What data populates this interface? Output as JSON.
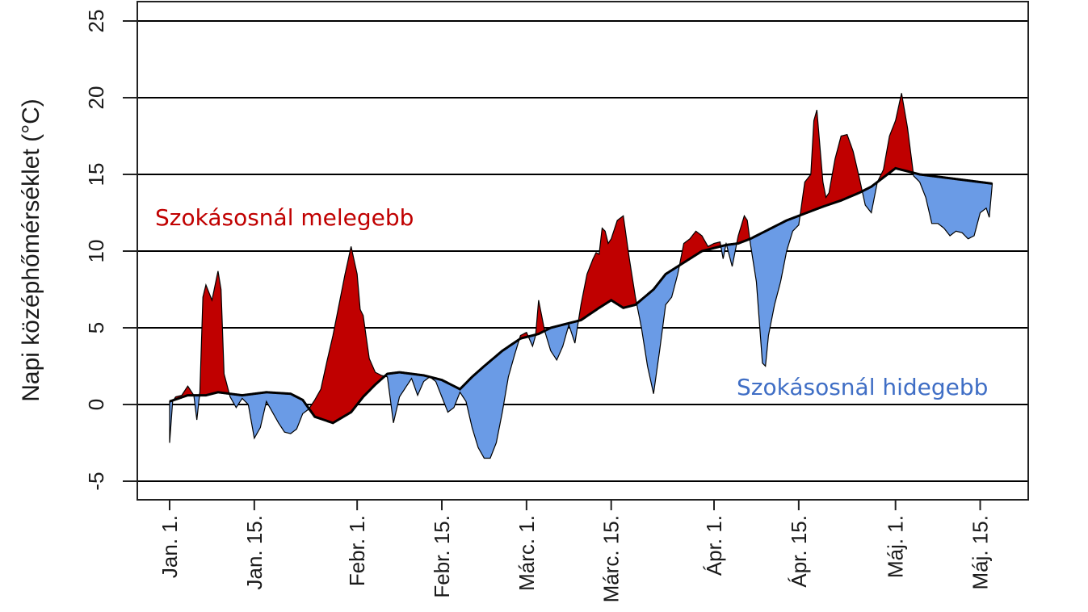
{
  "chart_data": {
    "type": "area",
    "ylabel": "Napi középhőmérséklet (°C)",
    "ylim": [
      -6,
      26
    ],
    "yticks": [
      -5,
      0,
      5,
      10,
      15,
      20,
      25
    ],
    "ytick_labels": [
      "-5",
      "0",
      "5",
      "10",
      "15",
      "20",
      "25"
    ],
    "xlim": [
      0,
      137
    ],
    "grid": "horizontal",
    "xticks": [
      {
        "day": 0,
        "label": "Jan. 1."
      },
      {
        "day": 14,
        "label": "Jan. 15."
      },
      {
        "day": 31,
        "label": "Febr. 1."
      },
      {
        "day": 45,
        "label": "Febr. 15."
      },
      {
        "day": 59,
        "label": "Márc. 1."
      },
      {
        "day": 73,
        "label": "Márc. 15."
      },
      {
        "day": 90,
        "label": "Ápr. 1."
      },
      {
        "day": 104,
        "label": "Ápr. 15."
      },
      {
        "day": 120,
        "label": "Máj. 1."
      },
      {
        "day": 134,
        "label": "Máj. 15."
      }
    ],
    "annotations": [
      {
        "text": "Szokásosnál melegebb",
        "color": "#c00000",
        "position": "upper-left"
      },
      {
        "text": "Szokásosnál hidegebb",
        "color": "#3f6ec5",
        "position": "lower-right"
      }
    ],
    "colors": {
      "warmer": "#c00000",
      "colder": "#6a9be6",
      "normal_line": "#000000",
      "grid": "#000000"
    },
    "series": [
      {
        "role": "normal",
        "points": [
          [
            0,
            0.2
          ],
          [
            3,
            0.6
          ],
          [
            6,
            0.6
          ],
          [
            8,
            0.8
          ],
          [
            12,
            0.6
          ],
          [
            16,
            0.8
          ],
          [
            20,
            0.7
          ],
          [
            22,
            0.3
          ],
          [
            24,
            -0.8
          ],
          [
            27,
            -1.2
          ],
          [
            30,
            -0.5
          ],
          [
            32,
            0.5
          ],
          [
            34,
            1.3
          ],
          [
            36,
            2.0
          ],
          [
            38,
            2.1
          ],
          [
            42,
            1.9
          ],
          [
            45,
            1.6
          ],
          [
            48,
            1.0
          ],
          [
            50,
            1.8
          ],
          [
            52,
            2.5
          ],
          [
            55,
            3.5
          ],
          [
            58,
            4.3
          ],
          [
            61,
            4.6
          ],
          [
            63,
            5.0
          ],
          [
            65,
            5.2
          ],
          [
            68,
            5.5
          ],
          [
            71,
            6.3
          ],
          [
            73,
            6.8
          ],
          [
            75,
            6.3
          ],
          [
            77,
            6.5
          ],
          [
            80,
            7.5
          ],
          [
            82,
            8.5
          ],
          [
            84,
            9.0
          ],
          [
            86,
            9.5
          ],
          [
            88,
            10.0
          ],
          [
            90,
            10.2
          ],
          [
            92,
            10.4
          ],
          [
            94,
            10.5
          ],
          [
            96,
            10.8
          ],
          [
            98,
            11.2
          ],
          [
            100,
            11.6
          ],
          [
            102,
            12.0
          ],
          [
            104,
            12.3
          ],
          [
            106,
            12.6
          ],
          [
            108,
            12.9
          ],
          [
            111,
            13.3
          ],
          [
            114,
            13.8
          ],
          [
            116,
            14.2
          ],
          [
            118,
            14.8
          ],
          [
            120,
            15.4
          ],
          [
            122,
            15.2
          ],
          [
            124,
            15.0
          ],
          [
            126,
            14.9
          ],
          [
            128,
            14.8
          ],
          [
            130,
            14.7
          ],
          [
            132,
            14.6
          ],
          [
            134,
            14.5
          ],
          [
            136,
            14.4
          ]
        ]
      },
      {
        "role": "observed",
        "points": [
          [
            0,
            -2.5
          ],
          [
            0.5,
            0.2
          ],
          [
            1,
            0.5
          ],
          [
            2,
            0.6
          ],
          [
            3,
            1.2
          ],
          [
            4,
            0.6
          ],
          [
            4.5,
            -1.0
          ],
          [
            5,
            0.8
          ],
          [
            5.5,
            7.0
          ],
          [
            6,
            7.8
          ],
          [
            7,
            6.8
          ],
          [
            8,
            8.7
          ],
          [
            8.5,
            7.5
          ],
          [
            9,
            2.0
          ],
          [
            10,
            0.5
          ],
          [
            11,
            -0.2
          ],
          [
            12,
            0.4
          ],
          [
            13,
            0.0
          ],
          [
            14,
            -2.2
          ],
          [
            15,
            -1.5
          ],
          [
            16,
            0.2
          ],
          [
            17,
            -0.5
          ],
          [
            18,
            -1.2
          ],
          [
            19,
            -1.8
          ],
          [
            20,
            -1.9
          ],
          [
            21,
            -1.6
          ],
          [
            22,
            -0.6
          ],
          [
            23,
            -0.3
          ],
          [
            24,
            0.3
          ],
          [
            25,
            1.0
          ],
          [
            26,
            2.8
          ],
          [
            27,
            4.5
          ],
          [
            28,
            6.5
          ],
          [
            29,
            8.5
          ],
          [
            30,
            10.3
          ],
          [
            31,
            8.5
          ],
          [
            31.5,
            6.2
          ],
          [
            32,
            5.8
          ],
          [
            33,
            3.0
          ],
          [
            34,
            2.1
          ],
          [
            35,
            1.9
          ],
          [
            36,
            1.8
          ],
          [
            37,
            -1.2
          ],
          [
            38,
            0.5
          ],
          [
            40,
            1.7
          ],
          [
            41,
            0.6
          ],
          [
            42,
            1.5
          ],
          [
            43,
            1.8
          ],
          [
            44,
            1.5
          ],
          [
            45,
            0.5
          ],
          [
            46,
            -0.5
          ],
          [
            47,
            -0.2
          ],
          [
            48,
            0.8
          ],
          [
            49,
            0.2
          ],
          [
            50,
            -1.5
          ],
          [
            51,
            -2.8
          ],
          [
            52,
            -3.5
          ],
          [
            53,
            -3.5
          ],
          [
            54,
            -2.5
          ],
          [
            55,
            -0.5
          ],
          [
            56,
            1.8
          ],
          [
            57,
            3.2
          ],
          [
            58,
            4.5
          ],
          [
            59,
            4.7
          ],
          [
            60,
            3.8
          ],
          [
            60.5,
            4.5
          ],
          [
            61,
            6.8
          ],
          [
            62,
            4.8
          ],
          [
            63,
            3.5
          ],
          [
            64,
            2.9
          ],
          [
            65,
            3.8
          ],
          [
            66,
            5.2
          ],
          [
            67,
            4.0
          ],
          [
            68,
            6.5
          ],
          [
            69,
            8.5
          ],
          [
            70,
            9.5
          ],
          [
            70.5,
            9.9
          ],
          [
            71,
            9.8
          ],
          [
            71.5,
            11.5
          ],
          [
            72,
            11.3
          ],
          [
            72.5,
            10.5
          ],
          [
            73,
            10.8
          ],
          [
            74,
            12.0
          ],
          [
            75,
            12.3
          ],
          [
            76,
            9.5
          ],
          [
            77,
            7.0
          ],
          [
            78,
            5.0
          ],
          [
            79,
            2.5
          ],
          [
            80,
            0.7
          ],
          [
            81,
            3.5
          ],
          [
            82,
            6.5
          ],
          [
            83,
            7.0
          ],
          [
            84,
            8.5
          ],
          [
            85,
            10.5
          ],
          [
            86,
            10.8
          ],
          [
            87,
            11.3
          ],
          [
            88,
            11.0
          ],
          [
            89,
            10.3
          ],
          [
            90,
            10.5
          ],
          [
            91,
            10.6
          ],
          [
            91.5,
            9.5
          ],
          [
            92,
            10.5
          ],
          [
            93,
            9.0
          ],
          [
            94,
            11.0
          ],
          [
            95,
            12.3
          ],
          [
            95.5,
            12.0
          ],
          [
            96,
            10.5
          ],
          [
            97,
            8.0
          ],
          [
            98,
            2.7
          ],
          [
            98.5,
            2.5
          ],
          [
            99,
            4.5
          ],
          [
            100,
            6.5
          ],
          [
            101,
            8.0
          ],
          [
            102,
            10.0
          ],
          [
            103,
            11.3
          ],
          [
            104,
            11.7
          ],
          [
            105,
            14.5
          ],
          [
            106,
            15.0
          ],
          [
            106.5,
            18.5
          ],
          [
            107,
            19.2
          ],
          [
            108,
            14.5
          ],
          [
            108.5,
            13.5
          ],
          [
            109,
            13.8
          ],
          [
            110,
            16.0
          ],
          [
            111,
            17.5
          ],
          [
            112,
            17.6
          ],
          [
            113,
            16.5
          ],
          [
            114,
            14.8
          ],
          [
            115,
            13.0
          ],
          [
            116,
            12.5
          ],
          [
            117,
            14.5
          ],
          [
            118,
            15.3
          ],
          [
            119,
            17.5
          ],
          [
            120,
            18.5
          ],
          [
            121,
            20.3
          ],
          [
            122,
            18.0
          ],
          [
            123,
            14.9
          ],
          [
            124,
            14.5
          ],
          [
            125,
            13.5
          ],
          [
            126,
            11.8
          ],
          [
            127,
            11.8
          ],
          [
            128,
            11.5
          ],
          [
            129,
            11.0
          ],
          [
            130,
            11.3
          ],
          [
            131,
            11.2
          ],
          [
            132,
            10.8
          ],
          [
            133,
            11.0
          ],
          [
            134,
            12.5
          ],
          [
            135,
            12.8
          ],
          [
            135.5,
            12.2
          ],
          [
            136,
            14.4
          ]
        ]
      }
    ]
  }
}
